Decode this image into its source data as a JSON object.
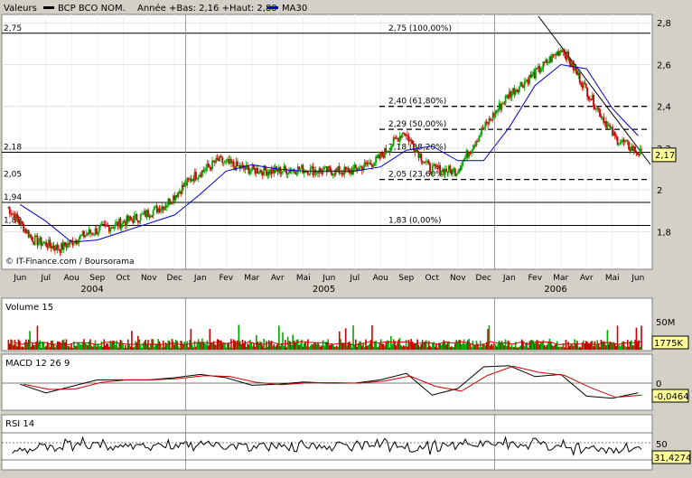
{
  "legend": {
    "valeurs_label": "Valeurs",
    "stock_name": "BCP BCO NOM.",
    "year_range": "Année +Bas: 2,16 +Haut: 2,80",
    "ma_label": "MA30"
  },
  "credit": "© IT-Finance.com / Boursorama",
  "colors": {
    "background": "#d4d0c8",
    "plot_bg": "#ffffff",
    "up_candle": "#00aa00",
    "down_candle": "#cc0000",
    "ma_line": "#0000cc",
    "price_box": "#ffff99"
  },
  "price_panel": {
    "y_ticks": [
      {
        "v": 1.8,
        "label": "1,8"
      },
      {
        "v": 2.0,
        "label": "2"
      },
      {
        "v": 2.2,
        "label": "2,2"
      },
      {
        "v": 2.4,
        "label": "2,4"
      },
      {
        "v": 2.6,
        "label": "2,6"
      },
      {
        "v": 2.8,
        "label": "2,8"
      }
    ],
    "ylim": [
      1.62,
      2.84
    ],
    "current_price": {
      "v": 2.17,
      "label": "2,17"
    },
    "fib_levels": [
      {
        "v": 2.75,
        "left_label": "2,75",
        "label": "2,75 (100,00%)",
        "style": "solid"
      },
      {
        "v": 2.4,
        "left_label": "",
        "label": "2,40 (61,80%)",
        "style": "dash"
      },
      {
        "v": 2.29,
        "left_label": "",
        "label": "2,29 (50,00%)",
        "style": "dash"
      },
      {
        "v": 2.18,
        "left_label": "2,18",
        "label": "2,18 (38,20%)",
        "style": "solid"
      },
      {
        "v": 2.05,
        "left_label": "2,05",
        "label": "2,05 (23,60%)",
        "style": "dash"
      },
      {
        "v": 1.94,
        "left_label": "1,94",
        "label": "",
        "style": "solid"
      },
      {
        "v": 1.83,
        "left_label": "1,83",
        "label": "1,83 (0,00%)",
        "style": "solid"
      }
    ]
  },
  "x_axis": {
    "months": [
      "Jun",
      "Jul",
      "Aou",
      "Sep",
      "Oct",
      "Nov",
      "Dec",
      "Jan",
      "Fev",
      "Mar",
      "Avr",
      "Mai",
      "Jun",
      "Jul",
      "Aou",
      "Sep",
      "Oct",
      "Nov",
      "Dec",
      "Jan",
      "Fev",
      "Mar",
      "Avr",
      "Mai",
      "Jun"
    ],
    "years": [
      {
        "label": "2004",
        "month_index": 3.3
      },
      {
        "label": "2005",
        "month_index": 12.3
      },
      {
        "label": "2006",
        "month_index": 21.3
      }
    ]
  },
  "volume_panel": {
    "title": "Volume 15",
    "tick_label": "50M",
    "current_label": "1775K"
  },
  "macd_panel": {
    "title": "MACD 12 26 9",
    "tick_label": "0",
    "current_label": "-0,0464"
  },
  "rsi_panel": {
    "title": "RSI 14",
    "tick_label": "50",
    "current_label": "31,4274"
  },
  "chart_data": {
    "type": "line",
    "title": "BCP BCO NOM.",
    "x": [
      "2004-06",
      "2004-07",
      "2004-08",
      "2004-09",
      "2004-10",
      "2004-11",
      "2004-12",
      "2005-01",
      "2005-02",
      "2005-03",
      "2005-04",
      "2005-05",
      "2005-06",
      "2005-07",
      "2005-08",
      "2005-09",
      "2005-10",
      "2005-11",
      "2005-12",
      "2006-01",
      "2006-02",
      "2006-03",
      "2006-04",
      "2006-05",
      "2006-06"
    ],
    "series": [
      {
        "name": "BCP BCO NOM.",
        "values": [
          1.92,
          1.76,
          1.72,
          1.79,
          1.83,
          1.87,
          1.93,
          2.06,
          2.14,
          2.1,
          2.09,
          2.1,
          2.09,
          2.09,
          2.14,
          2.28,
          2.1,
          2.09,
          2.29,
          2.46,
          2.56,
          2.68,
          2.46,
          2.25,
          2.17
        ]
      },
      {
        "name": "MA30",
        "values": [
          1.93,
          1.85,
          1.75,
          1.76,
          1.8,
          1.84,
          1.88,
          1.98,
          2.09,
          2.12,
          2.1,
          2.09,
          2.09,
          2.09,
          2.11,
          2.19,
          2.21,
          2.14,
          2.14,
          2.3,
          2.5,
          2.6,
          2.58,
          2.39,
          2.26
        ]
      }
    ],
    "ylim": [
      1.62,
      2.84
    ],
    "grid": true
  }
}
